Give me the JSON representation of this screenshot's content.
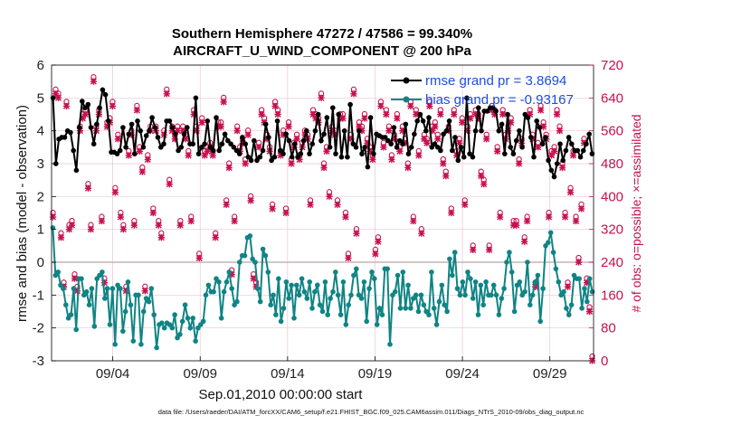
{
  "chart_data": {
    "type": "line",
    "title": "Southern Hemisphere 47272 / 47586 = 99.340%",
    "subtitle": "AIRCRAFT_U_WIND_COMPONENT @ 200 hPa",
    "xlabel": "Sep.01,2010 00:00:00 start",
    "ylabel": "rmse and bias (model - observation)",
    "ylabel_right": "# of obs: o=possible; ×=assimilated",
    "xlim": [
      0,
      31
    ],
    "ylim": [
      -3,
      6
    ],
    "ylim_right": [
      0,
      720
    ],
    "xticks": [
      3.5,
      8.5,
      13.5,
      18.5,
      23.5,
      28.5
    ],
    "xtick_labels": [
      "09/04",
      "09/09",
      "09/14",
      "09/19",
      "09/24",
      "09/29"
    ],
    "yticks": [
      -3,
      -2,
      -1,
      0,
      1,
      2,
      3,
      4,
      5,
      6
    ],
    "yticks_right": [
      0,
      80,
      160,
      240,
      320,
      400,
      480,
      560,
      640,
      720
    ],
    "grid": true,
    "legend_position": "top-right",
    "series": [
      {
        "name": "rmse grand pr = 3.8694",
        "color": "#000000",
        "marker": "dot",
        "values": [
          5.0,
          3.0,
          3.75,
          3.8,
          3.8,
          4.0,
          3.95,
          3.4,
          2.8,
          4.1,
          4.9,
          4.7,
          4.8,
          4.1,
          3.6,
          4.2,
          4.7,
          5.25,
          5.1,
          4.3,
          3.35,
          3.35,
          3.3,
          3.4,
          4.1,
          3.5,
          3.9,
          4.2,
          3.3,
          4.3,
          4.0,
          3.5,
          3.85,
          4.0,
          4.4,
          4.1,
          3.8,
          3.5,
          3.6,
          4.3,
          4.3,
          4.1,
          3.9,
          3.4,
          3.5,
          3.9,
          4.1,
          3.6,
          3.6,
          5.0,
          3.3,
          3.5,
          3.6,
          4.3,
          3.5,
          3.4,
          4.4,
          3.4,
          3.6,
          3.9,
          3.7,
          3.6,
          3.5,
          3.4,
          3.3,
          3.8,
          3.6,
          3.2,
          3.1,
          3.7,
          3.1,
          3.2,
          3.4,
          4.2,
          3.8,
          3.1,
          3.2,
          4.3,
          3.4,
          3.3,
          3.9,
          3.7,
          3.2,
          3.6,
          3.2,
          3.3,
          3.7,
          4.0,
          3.3,
          3.6,
          4.0,
          4.5,
          3.7,
          3.9,
          4.4,
          3.5,
          4.7,
          3.3,
          4.5,
          3.2,
          4.0,
          3.2,
          4.8,
          3.6,
          3.5,
          4.0,
          3.3,
          3.5,
          2.9,
          4.4,
          3.3,
          3.9,
          3.85,
          3.8,
          3.8,
          3.7,
          3.6,
          4.1,
          3.5,
          3.7,
          3.6,
          4.2,
          3.3,
          3.5,
          3.9,
          4.3,
          4.5,
          4.3,
          4.0,
          4.4,
          3.5,
          3.6,
          3.5,
          3.4,
          3.9,
          4.0,
          4.3,
          3.4,
          3.8,
          3.1,
          3.5,
          3.2,
          5.0,
          3.3,
          3.2,
          4.0,
          4.7,
          4.0,
          4.6,
          4.6,
          4.7,
          4.7,
          4.6,
          4.0,
          4.2,
          3.3,
          4.5,
          3.5,
          3.3,
          3.7,
          4.0,
          3.5,
          4.5,
          4.4,
          3.8,
          3.2,
          4.3,
          4.1,
          3.6,
          3.8,
          3.1,
          2.8,
          2.6,
          3.0,
          3.6,
          3.1,
          3.4,
          3.8,
          3.6,
          3.4,
          3.4,
          3.2,
          3.4,
          3.6,
          3.9,
          3.3
        ]
      },
      {
        "name": "bias grand pr = -0.93167",
        "color": "#108484",
        "marker": "dot",
        "values": [
          1.05,
          -0.4,
          -0.3,
          -0.7,
          -0.8,
          -1.3,
          -1.7,
          -1.6,
          -0.8,
          -2.05,
          -0.5,
          -0.5,
          -1.0,
          -0.9,
          -1.3,
          -0.8,
          -1.95,
          -0.5,
          -0.4,
          -0.3,
          -1.1,
          -0.8,
          -1.9,
          -0.8,
          -2.5,
          -0.7,
          -0.8,
          -2.1,
          -1.5,
          -0.6,
          -1.3,
          -2.4,
          -1.0,
          -1.0,
          -2.5,
          -1.5,
          -1.1,
          -1.2,
          -0.8,
          -1.6,
          -2.6,
          -1.9,
          -1.85,
          -2.0,
          -1.85,
          -1.9,
          -2.0,
          -1.6,
          -2.3,
          -2.2,
          -1.8,
          -1.3,
          -1.7,
          -2.0,
          -1.7,
          -2.4,
          -2.0,
          -1.9,
          -1.8,
          -1.0,
          -0.7,
          -0.9,
          -0.9,
          -0.5,
          -0.6,
          -1.7,
          -0.9,
          -0.6,
          -0.3,
          -0.8,
          -1.3,
          -1.2,
          0.0,
          0.2,
          0.2,
          0.75,
          0.8,
          0.1,
          0.0,
          -0.8,
          -1.2,
          0.4,
          0.2,
          -0.3,
          -1.3,
          -1.0,
          -1.6,
          -0.5,
          -1.8,
          -1.4,
          -0.6,
          -1.1,
          -0.7,
          -1.7,
          -0.7,
          -1.0,
          -0.5,
          -0.9,
          -1.1,
          -0.6,
          -1.4,
          -0.9,
          -0.7,
          -1.3,
          -1.5,
          -0.6,
          -1.6,
          -1.1,
          -0.9,
          -0.3,
          -1.0,
          -1.6,
          -0.6,
          -1.9,
          -1.3,
          -1.0,
          -0.4,
          -0.2,
          -1.0,
          -1.1,
          -0.6,
          -1.8,
          -0.8,
          -0.3,
          -0.5,
          -1.9,
          -1.4,
          -1.6,
          -0.2,
          -0.2,
          -2.5,
          -1.0,
          -0.9,
          -0.4,
          -1.4,
          -0.3,
          -1.4,
          -0.7,
          -1.4,
          -1.1,
          -1.0,
          -1.5,
          -1.0,
          -1.3,
          -1.5,
          -1.6,
          -0.3,
          -1.4,
          -1.9,
          -1.2,
          -0.7,
          -1.3,
          -1.5,
          0.1,
          -0.4,
          0.3,
          -0.8,
          -1.0,
          -0.6,
          -1.0,
          -0.3,
          -0.5,
          -1.1,
          -0.6,
          -1.6,
          -0.7,
          -1.3,
          -0.6,
          -1.0,
          -1.0,
          -0.7,
          -1.0,
          -1.6,
          -1.1,
          -0.8,
          0.0,
          0.3,
          -0.3,
          -1.5,
          -0.7,
          -0.6,
          -1.0,
          -0.9,
          0.0,
          -1.3,
          -1.0,
          -0.6,
          -0.4,
          -1.8,
          -0.8,
          0.5,
          0.6,
          0.9,
          0.3,
          -0.2,
          -0.6,
          -1.0,
          -0.9,
          -1.4,
          -1.6,
          -1.3,
          -0.4,
          -0.5,
          -0.5,
          -1.4,
          -0.8,
          -1.2,
          -0.5,
          -0.9
        ]
      }
    ],
    "obs_markers": {
      "color": "#c8104e",
      "possible_symbol": "o",
      "assimilated_symbol": "×",
      "counts": [
        350,
        650,
        640,
        300,
        180,
        620,
        320,
        330,
        200,
        170,
        560,
        590,
        600,
        420,
        320,
        680,
        560,
        600,
        340,
        190,
        570,
        580,
        620,
        410,
        540,
        350,
        320,
        170,
        500,
        550,
        330,
        610,
        510,
        460,
        170,
        490,
        560,
        360,
        560,
        330,
        300,
        550,
        650,
        430,
        560,
        540,
        560,
        330,
        560,
        540,
        500,
        340,
        600,
        560,
        250,
        580,
        500,
        510,
        520,
        500,
        300,
        570,
        570,
        630,
        380,
        470,
        210,
        340,
        560,
        510,
        530,
        480,
        550,
        390,
        200,
        180,
        520,
        600,
        580,
        540,
        510,
        370,
        620,
        600,
        500,
        550,
        360,
        570,
        480,
        520,
        540,
        490,
        520,
        550,
        540,
        380,
        600,
        590,
        580,
        640,
        470,
        510,
        400,
        560,
        550,
        380,
        590,
        590,
        350,
        250,
        540,
        650,
        310,
        570,
        560,
        590,
        530,
        510,
        490,
        260,
        290,
        620,
        520,
        600,
        560,
        490,
        540,
        590,
        510,
        560,
        530,
        470,
        620,
        340,
        600,
        500,
        310,
        540,
        530,
        620,
        560,
        570,
        540,
        600,
        480,
        450,
        560,
        360,
        600,
        500,
        530,
        580,
        380,
        560,
        590,
        270,
        600,
        590,
        450,
        430,
        540,
        270,
        610,
        600,
        510,
        350,
        600,
        540,
        560,
        580,
        330,
        330,
        480,
        530,
        290,
        340,
        600,
        540,
        180,
        520,
        610,
        570,
        540,
        350,
        500,
        510,
        600,
        560,
        470,
        350,
        180,
        410,
        500,
        340,
        240,
        370,
        530,
        190,
        120,
        0
      ]
    },
    "footer": "data file: /Users/raeder/DAI/ATM_forcXX/CAM6_setup/f.e21.FHIST_BGC.f09_025.CAM6assim.011/Diags_NTrS_2010-09/obs_diag_output.nc"
  }
}
